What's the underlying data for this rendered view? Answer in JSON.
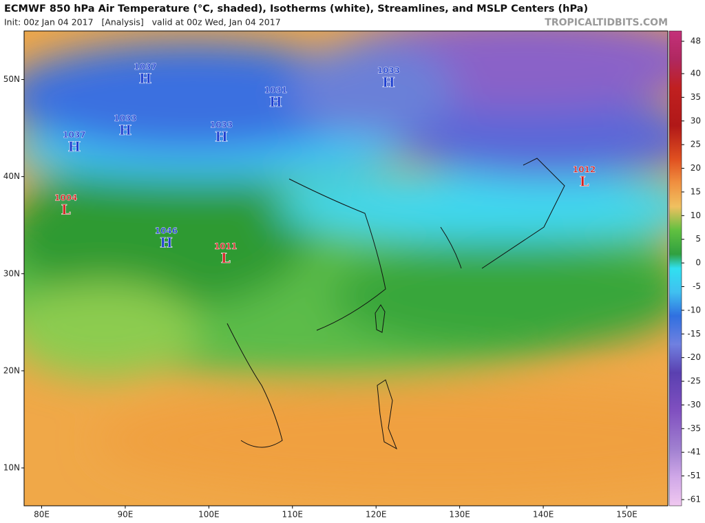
{
  "header": {
    "title": "ECMWF 850 hPa Air Temperature (°C, shaded), Isotherms (white), Streamlines, and MSLP Centers (hPa)",
    "subtitle": "Init: 00z Jan 04 2017   [Analysis]   valid at 00z Wed, Jan 04 2017",
    "site": "TROPICALTIDBITS.COM"
  },
  "map": {
    "lonlim": [
      77.9,
      154.9
    ],
    "latlim": [
      55.0,
      6.1
    ],
    "lonticks": [
      {
        "value": 80,
        "label": "80E"
      },
      {
        "value": 90,
        "label": "90E"
      },
      {
        "value": 100,
        "label": "100E"
      },
      {
        "value": 110,
        "label": "110E"
      },
      {
        "value": 120,
        "label": "120E"
      },
      {
        "value": 130,
        "label": "130E"
      },
      {
        "value": 140,
        "label": "140E"
      },
      {
        "value": 150,
        "label": "150E"
      }
    ],
    "latticks": [
      {
        "value": 50,
        "label": "50N"
      },
      {
        "value": 40,
        "label": "40N"
      },
      {
        "value": 30,
        "label": "30N"
      },
      {
        "value": 20,
        "label": "20N"
      },
      {
        "value": 10,
        "label": "10N"
      }
    ]
  },
  "centers": [
    {
      "pressure": 1037,
      "letter": "H",
      "color": "#1d3fd0",
      "lon": 92.4,
      "lat": 50.0
    },
    {
      "pressure": 1031,
      "letter": "H",
      "color": "#1d3fd0",
      "lon": 108.0,
      "lat": 47.6
    },
    {
      "pressure": 1033,
      "letter": "H",
      "color": "#1d3fd0",
      "lon": 121.5,
      "lat": 49.6
    },
    {
      "pressure": 1033,
      "letter": "H",
      "color": "#1d3fd0",
      "lon": 90.0,
      "lat": 44.7
    },
    {
      "pressure": 1033,
      "letter": "H",
      "color": "#1d3fd0",
      "lon": 101.5,
      "lat": 44.0
    },
    {
      "pressure": 1037,
      "letter": "H",
      "color": "#1d3fd0",
      "lon": 83.9,
      "lat": 43.0
    },
    {
      "pressure": 1012,
      "letter": "L",
      "color": "#d42020",
      "lon": 144.9,
      "lat": 39.4
    },
    {
      "pressure": 1004,
      "letter": "L",
      "color": "#d42020",
      "lon": 82.9,
      "lat": 36.5
    },
    {
      "pressure": 1046,
      "letter": "H",
      "color": "#1d3fd0",
      "lon": 94.9,
      "lat": 33.1
    },
    {
      "pressure": 1011,
      "letter": "L",
      "color": "#d42020",
      "lon": 102.0,
      "lat": 31.5
    }
  ],
  "colorbar": {
    "ticks": [
      48,
      40,
      35,
      30,
      25,
      20,
      15,
      10,
      5,
      0,
      -5,
      -10,
      -15,
      -20,
      -25,
      -30,
      -35,
      -41,
      -51,
      -61
    ]
  }
}
